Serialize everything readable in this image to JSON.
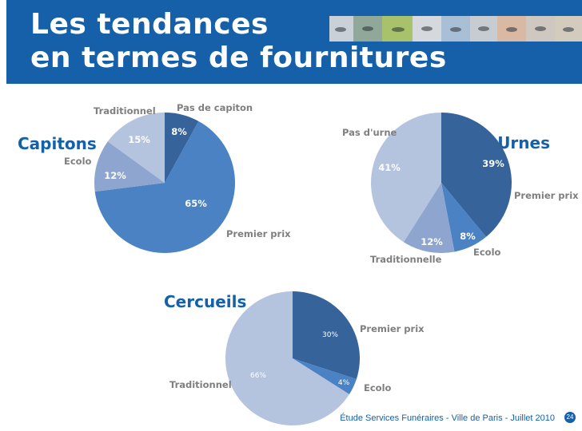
{
  "header": {
    "title_line1": "Les tendances",
    "title_line2": "en termes de fournitures"
  },
  "footer": {
    "text": "Étude Services Funéraires - Ville de Paris - Juillet 2010",
    "page_number": "24"
  },
  "colors": {
    "brand": "#1560a8",
    "dark_blue": "#35639a",
    "mid_blue": "#4b82c3",
    "light_blue": "#8ea6cf",
    "pale_blue": "#b4c4df"
  },
  "chart_data": [
    {
      "type": "pie",
      "title": "Capitons",
      "slices": [
        {
          "label": "Pas de capiton",
          "value": 8,
          "value_label": "8%",
          "color": "#35639a"
        },
        {
          "label": "Premier prix",
          "value": 65,
          "value_label": "65%",
          "color": "#4b82c3"
        },
        {
          "label": "Ecolo",
          "value": 12,
          "value_label": "12%",
          "color": "#8ea6cf"
        },
        {
          "label": "Traditionnel",
          "value": 15,
          "value_label": "15%",
          "color": "#b4c4df"
        }
      ]
    },
    {
      "type": "pie",
      "title": "Urnes",
      "slices": [
        {
          "label": "Premier prix",
          "value": 39,
          "value_label": "39%",
          "color": "#35639a"
        },
        {
          "label": "Ecolo",
          "value": 8,
          "value_label": "8%",
          "color": "#4b82c3"
        },
        {
          "label": "Traditionnelle",
          "value": 12,
          "value_label": "12%",
          "color": "#8ea6cf"
        },
        {
          "label": "Pas d'urne",
          "value": 41,
          "value_label": "41%",
          "color": "#b4c4df"
        }
      ]
    },
    {
      "type": "pie",
      "title": "Cercueils",
      "slices": [
        {
          "label": "Premier prix",
          "value": 30,
          "value_label": "30%",
          "color": "#35639a"
        },
        {
          "label": "Ecolo",
          "value": 4,
          "value_label": "4%",
          "color": "#4b82c3"
        },
        {
          "label": "Traditionnel",
          "value": 66,
          "value_label": "66%",
          "color": "#b4c4df"
        }
      ]
    }
  ]
}
